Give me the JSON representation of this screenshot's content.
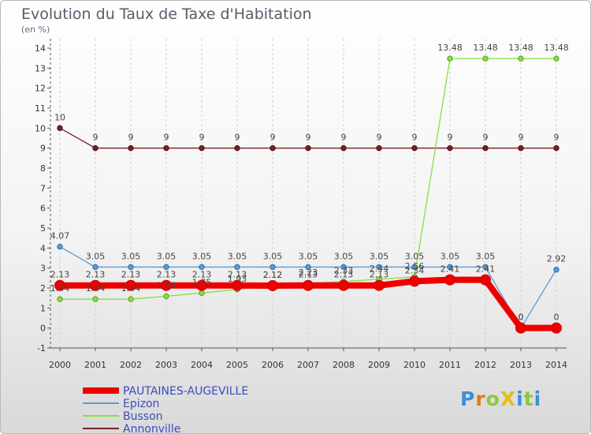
{
  "chart_data": {
    "type": "line",
    "title": "Evolution du Taux de Taxe d'Habitation",
    "subtitle": "(en %)",
    "xlabel": "",
    "ylabel": "",
    "x": [
      "2000",
      "2001",
      "2002",
      "2003",
      "2004",
      "2005",
      "2006",
      "2007",
      "2008",
      "2009",
      "2010",
      "2011",
      "2012",
      "2013",
      "2014"
    ],
    "ylim": [
      -1,
      14
    ],
    "yticks": [
      "-1",
      "0",
      "1",
      "2",
      "3",
      "4",
      "5",
      "6",
      "7",
      "8",
      "9",
      "10",
      "11",
      "12",
      "13",
      "14"
    ],
    "grid": "vertical dashed",
    "legend_position": "bottom-left",
    "series": [
      {
        "name": "PAUTAINES-AUGEVILLE",
        "color": "#ee0000",
        "values": [
          2.13,
          2.13,
          2.13,
          2.13,
          2.13,
          2.13,
          2.12,
          2.13,
          2.13,
          2.13,
          2.34,
          2.41,
          2.41,
          0,
          0
        ],
        "labels": [
          "2.13",
          "2.13",
          "2.13",
          "2.13",
          "2.13",
          "2.13",
          "2.12",
          "2.13",
          "2.13",
          "2.13",
          "2.34",
          "2.41",
          "2.41",
          "0",
          "0"
        ]
      },
      {
        "name": "Epizon",
        "color": "#5b9bd5",
        "values": [
          4.07,
          3.05,
          3.05,
          3.05,
          3.05,
          3.05,
          3.05,
          3.05,
          3.05,
          3.05,
          3.05,
          3.05,
          3.05,
          0,
          2.92
        ],
        "labels": [
          "4.07",
          "3.05",
          "3.05",
          "3.05",
          "3.05",
          "3.05",
          "3.05",
          "3.05",
          "3.05",
          "3.05",
          "3.05",
          "3.05",
          "3.05",
          "0",
          "2.92"
        ]
      },
      {
        "name": "Busson",
        "color": "#88dd44",
        "values": [
          1.44,
          1.44,
          1.44,
          1.59,
          1.75,
          1.93,
          2.12,
          2.23,
          2.33,
          2.44,
          2.56,
          13.48,
          13.48,
          13.48,
          13.48
        ],
        "labels": [
          "1.44",
          "1.44",
          "1.44",
          "1.59",
          "1.75",
          "1.93",
          "2.12",
          "2.23",
          "2.33",
          "2.44",
          "2.56",
          "13.48",
          "13.48",
          "13.48",
          "13.48"
        ]
      },
      {
        "name": "Annonville",
        "color": "#772222",
        "values": [
          10,
          9,
          9,
          9,
          9,
          9,
          9,
          9,
          9,
          9,
          9,
          9,
          9,
          9,
          9
        ],
        "labels": [
          "10",
          "9",
          "9",
          "9",
          "9",
          "9",
          "9",
          "9",
          "9",
          "9",
          "9",
          "9",
          "9",
          "9",
          "9"
        ]
      }
    ]
  },
  "logo": {
    "text": "ProXiti",
    "letters": [
      "P",
      "r",
      "o",
      "X",
      "i",
      "t",
      "i"
    ],
    "colors": [
      "#3a8fd8",
      "#e07a1a",
      "#8cc63f",
      "#e0c01a",
      "#3a8fd8",
      "#8cc63f",
      "#3a8fd8"
    ]
  }
}
